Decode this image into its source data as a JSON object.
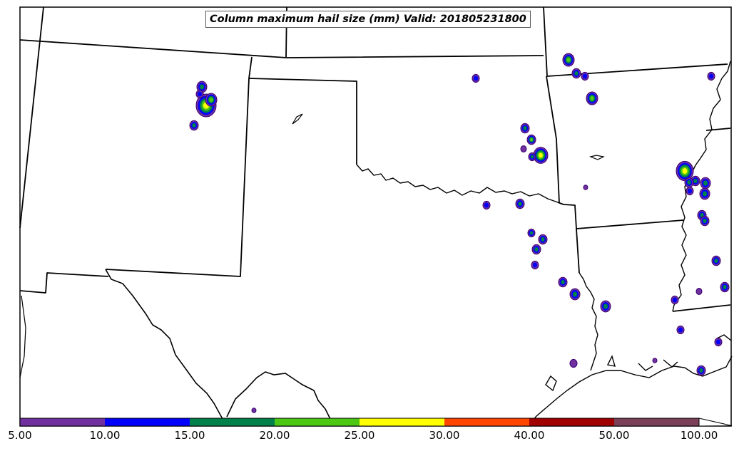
{
  "map": {
    "title": "Column maximum hail size (mm) Valid: 201805231800",
    "variable": "Column maximum hail size",
    "units": "mm",
    "valid_time": "201805231800"
  },
  "colorbar": {
    "ticks": [
      "5.00",
      "10.00",
      "15.00",
      "20.00",
      "25.00",
      "30.00",
      "40.00",
      "50.00",
      "100.00"
    ],
    "colors": [
      "#7030a0",
      "#0000ff",
      "#00804a",
      "#4cc814",
      "#ffff00",
      "#ff4500",
      "#a00000",
      "#7a4058"
    ],
    "extend": "max"
  },
  "style": {
    "border_color": "#000000",
    "outline_color": "#3a0070"
  }
}
